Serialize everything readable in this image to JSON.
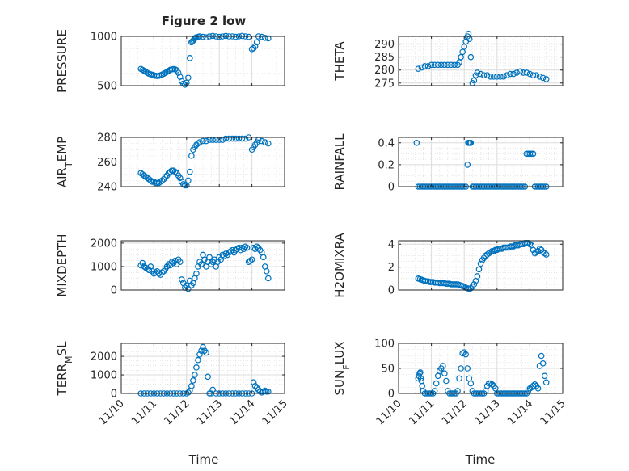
{
  "title": "Figure 2 low",
  "xlabel": "Time",
  "marker_color": "#0072BD",
  "chart_data": [
    {
      "type": "scatter",
      "ylabel": "PRESSURE",
      "xlim": [
        0,
        5
      ],
      "ylim": [
        500,
        1000
      ],
      "yticks": [
        500,
        1000
      ],
      "yticklabels": [
        "500",
        "1000"
      ],
      "grid": true,
      "minor_grid": true,
      "show_xticklabels": false,
      "x": [
        0.6,
        0.65,
        0.7,
        0.75,
        0.8,
        0.85,
        0.9,
        0.95,
        1.0,
        1.05,
        1.1,
        1.15,
        1.2,
        1.25,
        1.3,
        1.35,
        1.4,
        1.45,
        1.5,
        1.55,
        1.6,
        1.65,
        1.7,
        1.75,
        1.8,
        1.85,
        1.9,
        1.95,
        2.0,
        2.05,
        2.1,
        2.15,
        2.18,
        2.21,
        2.24,
        2.27,
        2.3,
        2.35,
        2.4,
        2.5,
        2.6,
        2.7,
        2.8,
        2.9,
        3.0,
        3.1,
        3.2,
        3.3,
        3.4,
        3.5,
        3.6,
        3.7,
        3.8,
        3.9,
        4.0,
        4.05,
        4.1,
        4.15,
        4.2,
        4.3,
        4.4,
        4.5
      ],
      "y": [
        670,
        660,
        650,
        640,
        630,
        620,
        615,
        610,
        605,
        600,
        598,
        600,
        605,
        612,
        620,
        630,
        640,
        650,
        660,
        665,
        668,
        665,
        655,
        630,
        590,
        545,
        520,
        510,
        530,
        580,
        780,
        940,
        950,
        960,
        975,
        985,
        990,
        995,
        1000,
        995,
        990,
        1000,
        1005,
        1000,
        995,
        1000,
        1005,
        1000,
        1000,
        995,
        1000,
        1005,
        1000,
        995,
        870,
        880,
        900,
        940,
        1000,
        995,
        985,
        980
      ]
    },
    {
      "type": "scatter",
      "ylabel": "THETA",
      "xlim": [
        0,
        5
      ],
      "ylim": [
        274,
        293
      ],
      "yticks": [
        275,
        280,
        285,
        290
      ],
      "yticklabels": [
        "275",
        "280",
        "285",
        "290"
      ],
      "grid": true,
      "minor_grid": true,
      "show_xticklabels": false,
      "x": [
        0.6,
        0.7,
        0.8,
        0.9,
        1.0,
        1.1,
        1.2,
        1.3,
        1.4,
        1.5,
        1.6,
        1.7,
        1.8,
        1.85,
        1.9,
        1.95,
        2.0,
        2.05,
        2.1,
        2.13,
        2.16,
        2.2,
        2.25,
        2.3,
        2.35,
        2.4,
        2.5,
        2.6,
        2.7,
        2.8,
        2.9,
        3.0,
        3.1,
        3.2,
        3.3,
        3.4,
        3.5,
        3.6,
        3.7,
        3.8,
        3.9,
        4.0,
        4.1,
        4.2,
        4.3,
        4.4,
        4.5
      ],
      "y": [
        280.5,
        281,
        281.5,
        281.5,
        282,
        282,
        282,
        282,
        282,
        282,
        282,
        282,
        282,
        283,
        285,
        287,
        289,
        291,
        293,
        294,
        292,
        285,
        275,
        276,
        278,
        279,
        278.5,
        278,
        278,
        277.5,
        277.5,
        277.5,
        277.5,
        277.5,
        278,
        278.5,
        278.5,
        279,
        279.5,
        279,
        279,
        278.5,
        278,
        278,
        277.5,
        277,
        276.5
      ]
    },
    {
      "type": "scatter",
      "ylabel": "AIR_TEMP",
      "xlim": [
        0,
        5
      ],
      "ylim": [
        240,
        280
      ],
      "yticks": [
        240,
        260,
        280
      ],
      "yticklabels": [
        "240",
        "260",
        "280"
      ],
      "grid": true,
      "minor_grid": true,
      "show_xticklabels": false,
      "x": [
        0.6,
        0.65,
        0.7,
        0.75,
        0.8,
        0.85,
        0.9,
        0.95,
        1.0,
        1.05,
        1.1,
        1.15,
        1.2,
        1.25,
        1.3,
        1.35,
        1.4,
        1.45,
        1.5,
        1.55,
        1.6,
        1.65,
        1.7,
        1.75,
        1.8,
        1.85,
        1.9,
        1.95,
        2.0,
        2.05,
        2.1,
        2.15,
        2.2,
        2.25,
        2.3,
        2.35,
        2.4,
        2.5,
        2.6,
        2.7,
        2.8,
        2.9,
        3.0,
        3.1,
        3.2,
        3.3,
        3.4,
        3.5,
        3.6,
        3.7,
        3.8,
        3.9,
        4.0,
        4.05,
        4.1,
        4.15,
        4.2,
        4.3,
        4.4,
        4.5
      ],
      "y": [
        251,
        250,
        249,
        248,
        247,
        246,
        245,
        244,
        244,
        243,
        243,
        243,
        244,
        245,
        246,
        248,
        249,
        251,
        252,
        253,
        253,
        252,
        251,
        249,
        247,
        244,
        242,
        241,
        241,
        245,
        252,
        265,
        270,
        272,
        274,
        275,
        276,
        277,
        277,
        278,
        278,
        278,
        278,
        278,
        279,
        279,
        279,
        279,
        279,
        279,
        279,
        280,
        270,
        272,
        274,
        276,
        278,
        277,
        276,
        275
      ]
    },
    {
      "type": "scatter",
      "ylabel": "RAINFALL",
      "xlim": [
        0,
        5
      ],
      "ylim": [
        0,
        0.45
      ],
      "yticks": [
        0,
        0.2,
        0.4
      ],
      "yticklabels": [
        "0",
        "0.2",
        "0.4"
      ],
      "grid": true,
      "minor_grid": true,
      "show_xticklabels": false,
      "x": [
        0.55,
        0.6,
        0.65,
        0.7,
        0.75,
        0.8,
        0.85,
        0.9,
        0.95,
        1.0,
        1.05,
        1.1,
        1.15,
        1.2,
        1.25,
        1.3,
        1.35,
        1.4,
        1.45,
        1.5,
        1.55,
        1.6,
        1.65,
        1.7,
        1.75,
        1.8,
        1.85,
        1.9,
        1.95,
        2.0,
        2.05,
        2.1,
        2.12,
        2.15,
        2.18,
        2.2,
        2.25,
        2.3,
        2.35,
        2.4,
        2.45,
        2.5,
        2.55,
        2.6,
        2.65,
        2.7,
        2.75,
        2.8,
        2.85,
        2.9,
        2.95,
        3.0,
        3.05,
        3.1,
        3.15,
        3.2,
        3.25,
        3.3,
        3.35,
        3.4,
        3.45,
        3.5,
        3.55,
        3.6,
        3.65,
        3.7,
        3.75,
        3.8,
        3.85,
        3.9,
        3.95,
        4.0,
        4.05,
        4.1,
        4.15,
        4.2,
        4.25,
        4.3,
        4.35,
        4.4,
        4.45,
        4.5
      ],
      "y": [
        0.4,
        0,
        0,
        0,
        0,
        0,
        0,
        0,
        0,
        0,
        0,
        0,
        0,
        0,
        0,
        0,
        0,
        0,
        0,
        0,
        0,
        0,
        0,
        0,
        0,
        0,
        0,
        0,
        0,
        0,
        0,
        0.2,
        0.4,
        0.4,
        0.4,
        0.4,
        0,
        0,
        0,
        0,
        0,
        0,
        0,
        0,
        0,
        0,
        0,
        0,
        0,
        0,
        0,
        0,
        0,
        0,
        0,
        0,
        0,
        0,
        0,
        0,
        0,
        0,
        0,
        0,
        0,
        0,
        0,
        0,
        0,
        0.3,
        0.3,
        0.3,
        0.3,
        0.3,
        0,
        0,
        0,
        0,
        0,
        0,
        0,
        0
      ]
    },
    {
      "type": "scatter",
      "ylabel": "MIXDEPTH",
      "xlim": [
        0,
        5
      ],
      "ylim": [
        0,
        2100
      ],
      "yticks": [
        0,
        1000,
        2000
      ],
      "yticklabels": [
        "0",
        "1000",
        "2000"
      ],
      "grid": true,
      "minor_grid": true,
      "show_xticklabels": false,
      "x": [
        0.6,
        0.65,
        0.7,
        0.75,
        0.8,
        0.85,
        0.9,
        0.95,
        1.0,
        1.05,
        1.1,
        1.15,
        1.2,
        1.25,
        1.3,
        1.35,
        1.4,
        1.45,
        1.5,
        1.55,
        1.6,
        1.65,
        1.7,
        1.75,
        1.8,
        1.85,
        1.9,
        1.95,
        2.0,
        2.05,
        2.1,
        2.15,
        2.2,
        2.25,
        2.3,
        2.35,
        2.4,
        2.45,
        2.5,
        2.55,
        2.6,
        2.65,
        2.7,
        2.75,
        2.8,
        2.85,
        2.9,
        2.95,
        3.0,
        3.05,
        3.1,
        3.15,
        3.2,
        3.25,
        3.3,
        3.35,
        3.4,
        3.45,
        3.5,
        3.55,
        3.6,
        3.65,
        3.7,
        3.75,
        3.8,
        3.85,
        3.9,
        3.95,
        4.0,
        4.05,
        4.1,
        4.15,
        4.2,
        4.25,
        4.3,
        4.35,
        4.4,
        4.45,
        4.5
      ],
      "y": [
        1050,
        1150,
        1000,
        950,
        900,
        850,
        1000,
        800,
        700,
        750,
        800,
        700,
        650,
        750,
        800,
        900,
        1000,
        1100,
        1050,
        1200,
        1150,
        1250,
        1100,
        1300,
        1200,
        450,
        300,
        100,
        200,
        50,
        400,
        200,
        300,
        500,
        700,
        1000,
        1200,
        1100,
        1500,
        1300,
        1000,
        1200,
        1400,
        1100,
        1200,
        1300,
        1000,
        1200,
        1400,
        1300,
        1500,
        1450,
        1550,
        1500,
        1600,
        1650,
        1700,
        1600,
        1700,
        1750,
        1800,
        1700,
        1800,
        1750,
        1850,
        1800,
        1200,
        1250,
        1300,
        1800,
        1750,
        1850,
        1800,
        1700,
        1600,
        1400,
        1000,
        800,
        500
      ]
    },
    {
      "type": "scatter",
      "ylabel": "H2OMIXRA",
      "xlim": [
        0,
        5
      ],
      "ylim": [
        0,
        4.3
      ],
      "yticks": [
        0,
        2,
        4
      ],
      "yticklabels": [
        "0",
        "2",
        "4"
      ],
      "grid": true,
      "minor_grid": true,
      "show_xticklabels": false,
      "x": [
        0.6,
        0.65,
        0.7,
        0.75,
        0.8,
        0.85,
        0.9,
        0.95,
        1.0,
        1.05,
        1.1,
        1.15,
        1.2,
        1.25,
        1.3,
        1.35,
        1.4,
        1.45,
        1.5,
        1.55,
        1.6,
        1.65,
        1.7,
        1.75,
        1.8,
        1.85,
        1.9,
        1.95,
        2.0,
        2.05,
        2.1,
        2.15,
        2.2,
        2.25,
        2.3,
        2.35,
        2.4,
        2.45,
        2.5,
        2.55,
        2.6,
        2.65,
        2.7,
        2.75,
        2.8,
        2.85,
        2.9,
        2.95,
        3.0,
        3.05,
        3.1,
        3.15,
        3.2,
        3.25,
        3.3,
        3.35,
        3.4,
        3.45,
        3.5,
        3.55,
        3.6,
        3.65,
        3.7,
        3.75,
        3.8,
        3.85,
        3.9,
        3.95,
        4.0,
        4.05,
        4.1,
        4.15,
        4.2,
        4.25,
        4.3,
        4.35,
        4.4,
        4.45,
        4.5
      ],
      "y": [
        1.0,
        0.95,
        0.9,
        0.85,
        0.8,
        0.75,
        0.75,
        0.7,
        0.7,
        0.7,
        0.65,
        0.65,
        0.65,
        0.6,
        0.6,
        0.6,
        0.6,
        0.55,
        0.55,
        0.55,
        0.5,
        0.5,
        0.5,
        0.5,
        0.5,
        0.45,
        0.4,
        0.35,
        0.3,
        0.2,
        0.15,
        0.1,
        0.15,
        0.3,
        0.5,
        0.8,
        1.2,
        1.8,
        2.3,
        2.6,
        2.8,
        3.0,
        3.1,
        3.2,
        3.3,
        3.4,
        3.4,
        3.5,
        3.5,
        3.6,
        3.6,
        3.6,
        3.7,
        3.7,
        3.7,
        3.7,
        3.8,
        3.8,
        3.8,
        3.9,
        3.9,
        3.9,
        4.0,
        4.0,
        4.0,
        4.1,
        4.1,
        4.1,
        4.0,
        3.9,
        3.5,
        3.2,
        3.3,
        3.4,
        3.6,
        3.5,
        3.3,
        3.2,
        3.1
      ]
    },
    {
      "type": "scatter",
      "ylabel": "TERR_MSL",
      "xlim": [
        0,
        5
      ],
      "ylim": [
        0,
        2700
      ],
      "yticks": [
        0,
        1000,
        2000
      ],
      "yticklabels": [
        "0",
        "1000",
        "2000"
      ],
      "grid": true,
      "minor_grid": true,
      "show_xticklabels": true,
      "xticks": [
        0,
        1,
        2,
        3,
        4,
        5
      ],
      "xticklabels": [
        "11/10",
        "11/11",
        "11/12",
        "11/13",
        "11/14",
        "11/15"
      ],
      "x": [
        0.6,
        0.7,
        0.8,
        0.9,
        1.0,
        1.1,
        1.2,
        1.3,
        1.4,
        1.5,
        1.6,
        1.7,
        1.8,
        1.9,
        2.0,
        2.05,
        2.1,
        2.15,
        2.2,
        2.25,
        2.3,
        2.35,
        2.4,
        2.45,
        2.5,
        2.55,
        2.6,
        2.65,
        2.7,
        2.75,
        2.8,
        2.9,
        3.0,
        3.1,
        3.2,
        3.3,
        3.4,
        3.5,
        3.6,
        3.7,
        3.8,
        3.9,
        4.0,
        4.05,
        4.1,
        4.15,
        4.2,
        4.25,
        4.3,
        4.35,
        4.4,
        4.45,
        4.5
      ],
      "y": [
        0,
        0,
        0,
        0,
        0,
        0,
        0,
        0,
        0,
        0,
        0,
        0,
        0,
        0,
        0,
        50,
        150,
        400,
        700,
        1000,
        1400,
        1800,
        2100,
        2300,
        2500,
        2300,
        2200,
        900,
        0,
        0,
        200,
        0,
        0,
        0,
        0,
        0,
        0,
        0,
        0,
        0,
        0,
        0,
        0,
        600,
        400,
        300,
        200,
        100,
        50,
        100,
        150,
        100,
        100
      ]
    },
    {
      "type": "scatter",
      "ylabel": "SUN_FLUX",
      "xlim": [
        0,
        5
      ],
      "ylim": [
        0,
        100
      ],
      "yticks": [
        0,
        50,
        100
      ],
      "yticklabels": [
        "0",
        "50",
        "100"
      ],
      "grid": true,
      "minor_grid": true,
      "show_xticklabels": true,
      "xticks": [
        0,
        1,
        2,
        3,
        4,
        5
      ],
      "xticklabels": [
        "11/10",
        "11/11",
        "11/12",
        "11/13",
        "11/14",
        "11/15"
      ],
      "x": [
        0.6,
        0.62,
        0.64,
        0.66,
        0.68,
        0.7,
        0.72,
        0.75,
        0.8,
        0.85,
        0.9,
        0.95,
        1.0,
        1.05,
        1.1,
        1.15,
        1.2,
        1.25,
        1.3,
        1.35,
        1.4,
        1.45,
        1.5,
        1.55,
        1.6,
        1.65,
        1.7,
        1.75,
        1.8,
        1.85,
        1.9,
        1.95,
        2.0,
        2.05,
        2.1,
        2.15,
        2.2,
        2.25,
        2.3,
        2.35,
        2.4,
        2.45,
        2.5,
        2.55,
        2.6,
        2.65,
        2.7,
        2.75,
        2.8,
        2.85,
        2.9,
        2.95,
        3.0,
        3.05,
        3.1,
        3.15,
        3.2,
        3.25,
        3.3,
        3.35,
        3.4,
        3.45,
        3.5,
        3.55,
        3.6,
        3.65,
        3.7,
        3.75,
        3.8,
        3.85,
        3.9,
        3.95,
        4.0,
        4.05,
        4.1,
        4.15,
        4.2,
        4.25,
        4.3,
        4.35,
        4.4,
        4.45,
        4.5
      ],
      "y": [
        30,
        35,
        40,
        42,
        30,
        25,
        15,
        5,
        0,
        0,
        0,
        0,
        0,
        0,
        5,
        20,
        35,
        45,
        50,
        55,
        40,
        25,
        5,
        0,
        0,
        0,
        0,
        0,
        5,
        30,
        50,
        80,
        82,
        78,
        50,
        30,
        20,
        5,
        0,
        0,
        0,
        0,
        0,
        0,
        0,
        5,
        15,
        20,
        20,
        18,
        15,
        10,
        0,
        0,
        0,
        0,
        0,
        0,
        0,
        0,
        0,
        0,
        0,
        0,
        0,
        0,
        0,
        0,
        0,
        0,
        0,
        5,
        10,
        12,
        15,
        18,
        15,
        10,
        55,
        75,
        60,
        35,
        22
      ]
    }
  ]
}
